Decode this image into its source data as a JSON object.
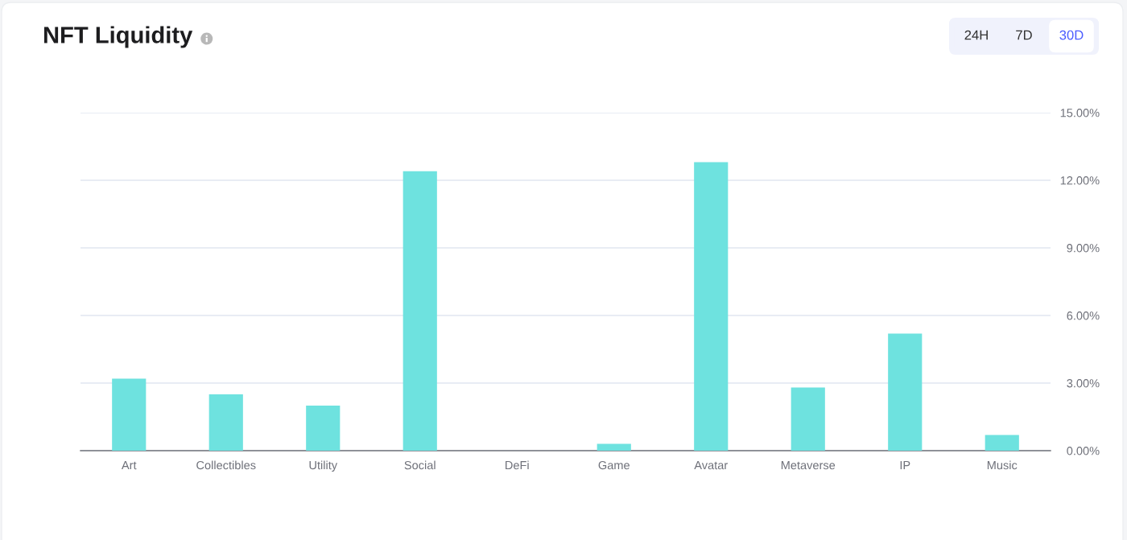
{
  "chart_data": {
    "type": "bar",
    "title": "NFT Liquidity",
    "annotations": [
      "24H",
      "7D",
      "30D"
    ],
    "categories": [
      "Art",
      "Collectibles",
      "Utility",
      "Social",
      "DeFi",
      "Game",
      "Avatar",
      "Metaverse",
      "IP",
      "Music"
    ],
    "values": [
      3.2,
      2.5,
      2.0,
      12.4,
      0,
      0.3,
      12.8,
      2.8,
      5.2,
      0.7
    ],
    "color": "#6ee2df",
    "ylim": [
      0,
      15
    ],
    "yticks": [
      {
        "value": 0,
        "label": "0.00%"
      },
      {
        "value": 3,
        "label": "3.00%"
      },
      {
        "value": 6,
        "label": "6.00%"
      },
      {
        "value": 9,
        "label": "9.00%"
      },
      {
        "value": 12,
        "label": "12.00%"
      },
      {
        "value": 15,
        "label": "15.00%"
      }
    ],
    "grid": "y",
    "legend": false
  }
}
